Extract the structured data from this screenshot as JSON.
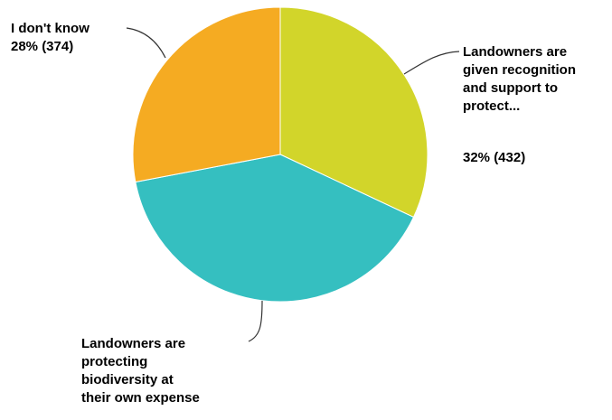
{
  "chart_data": {
    "type": "pie",
    "slices": [
      {
        "label_lines": [
          "Landowners are",
          "given recognition",
          "and support to",
          "protect..."
        ],
        "value_label": "32% (432)",
        "percent": 32,
        "count": 432,
        "color": "#d2d52a"
      },
      {
        "label_lines": [
          "Landowners are",
          "protecting",
          "biodiversity at",
          "their own expense"
        ],
        "value_label": "",
        "percent": 40,
        "count": null,
        "color": "#35bfc0"
      },
      {
        "label_lines": [
          "I don't know"
        ],
        "value_label": "28% (374)",
        "percent": 28,
        "count": 374,
        "color": "#f5ab22"
      }
    ]
  }
}
